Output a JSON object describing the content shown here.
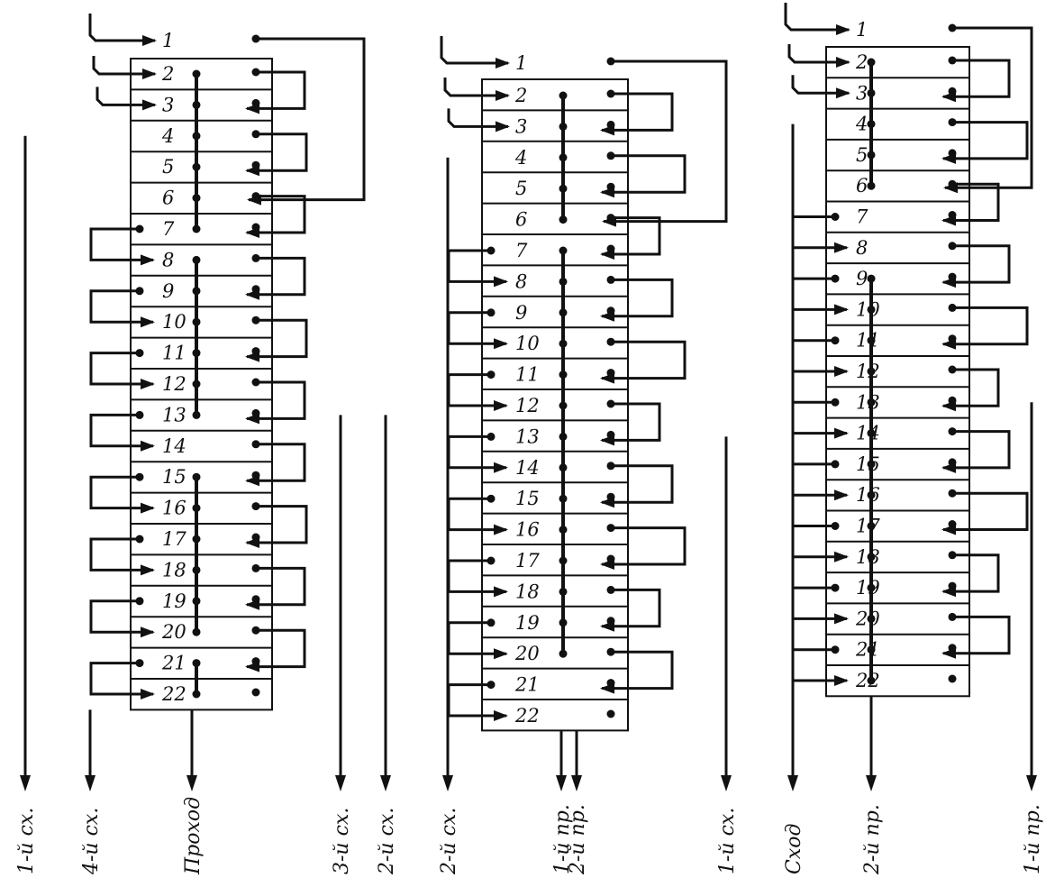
{
  "colors": {
    "ink": "#111111",
    "paper": "#ffffff"
  },
  "panels": [
    {
      "numbers": [
        "1",
        "2",
        "3",
        "4",
        "5",
        "6",
        "7",
        "8",
        "9",
        "10",
        "11",
        "12",
        "13",
        "14",
        "15",
        "16",
        "17",
        "18",
        "19",
        "20",
        "21",
        "22"
      ],
      "bottom_labels": [
        "1-й сх.",
        "4-й сх.",
        "Проход",
        "3-й сх.",
        "2-й сх."
      ]
    },
    {
      "numbers": [
        "1",
        "2",
        "3",
        "4",
        "5",
        "6",
        "7",
        "8",
        "9",
        "10",
        "11",
        "12",
        "13",
        "14",
        "15",
        "16",
        "17",
        "18",
        "19",
        "20",
        "21",
        "22"
      ],
      "bottom_labels": [
        "2-й сх.",
        "1-й пр.",
        "2-й пр.",
        "1-й сх."
      ]
    },
    {
      "numbers": [
        "1",
        "2",
        "3",
        "4",
        "5",
        "6",
        "7",
        "8",
        "9",
        "10",
        "11",
        "12",
        "13",
        "14",
        "15",
        "16",
        "17",
        "18",
        "19",
        "20",
        "21",
        "22"
      ],
      "bottom_labels": [
        "Сход",
        "2-й пр.",
        "1-й пр."
      ]
    }
  ]
}
